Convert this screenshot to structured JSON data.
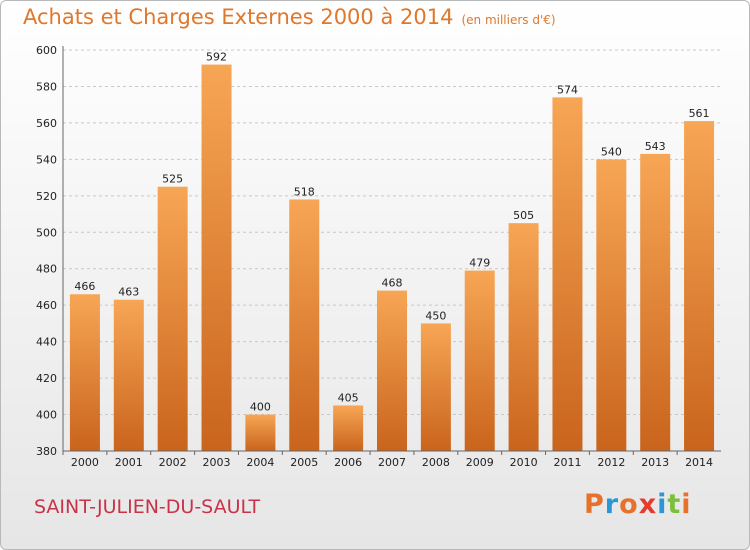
{
  "header": {
    "title": "Achats et Charges Externes 2000 à 2014",
    "unit": "(en milliers d'€)"
  },
  "footer": {
    "commune": "SAINT-JULIEN-DU-SAULT",
    "logo": "Proxiti",
    "logo_colors": [
      "#e8712a",
      "#2c97d5",
      "#e8712a",
      "#e63a2f",
      "#2c97d5",
      "#7cbf3a",
      "#e8712a"
    ]
  },
  "colors": {
    "bar_light": "#f7a655",
    "bar_dark": "#c9641c",
    "title": "#e0772a",
    "commune": "#c8334a",
    "grid": "#c8c8c8"
  },
  "chart_data": {
    "type": "bar",
    "title": "Achats et Charges Externes 2000 à 2014",
    "subtitle": "(en milliers d'€)",
    "categories": [
      "2000",
      "2001",
      "2002",
      "2003",
      "2004",
      "2005",
      "2006",
      "2007",
      "2008",
      "2009",
      "2010",
      "2011",
      "2012",
      "2013",
      "2014"
    ],
    "values": [
      466,
      463,
      525,
      592,
      400,
      518,
      405,
      468,
      450,
      479,
      505,
      574,
      540,
      543,
      561
    ],
    "ylim": [
      380,
      600
    ],
    "yticks": [
      380,
      400,
      420,
      440,
      460,
      480,
      500,
      520,
      540,
      560,
      580,
      600
    ],
    "grid": true,
    "xlabel": "",
    "ylabel": ""
  }
}
